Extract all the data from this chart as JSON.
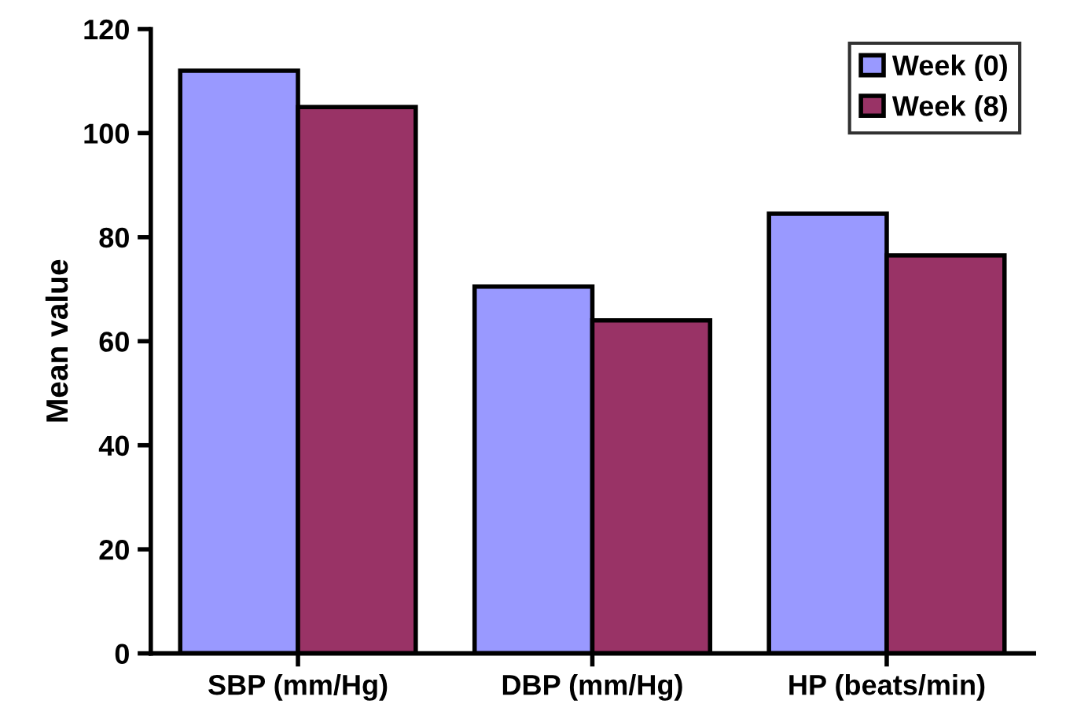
{
  "chart_data": {
    "type": "bar",
    "ylabel": "Mean value",
    "categories": [
      "SBP (mm/Hg)",
      "DBP (mm/Hg)",
      "HP (beats/min)"
    ],
    "series": [
      {
        "name": "Week (0)",
        "color": "#9999ff",
        "values": [
          112,
          70.5,
          84.5
        ]
      },
      {
        "name": "Week (8)",
        "color": "#993366",
        "values": [
          105,
          64,
          76.5
        ]
      }
    ],
    "ylim": [
      0,
      120
    ],
    "yticks": [
      0,
      20,
      40,
      60,
      80,
      100,
      120
    ],
    "grid": false,
    "legend": "top right"
  }
}
